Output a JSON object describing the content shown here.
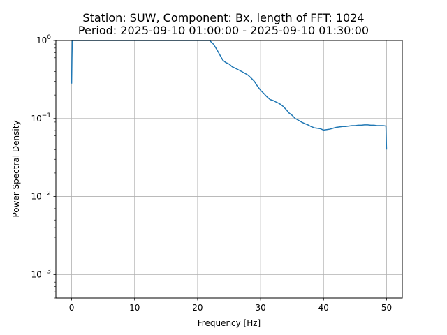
{
  "chart_data": {
    "type": "line",
    "title": "Station: SUW, Component: Bx, length of FFT: 1024",
    "subtitle": "Period: 2025-09-10 01:00:00 - 2025-09-10 01:30:00",
    "xlabel": "Frequency [Hz]",
    "ylabel": "Power Spectral Density",
    "xlim": [
      -2.5,
      52.5
    ],
    "ylim": [
      0.0005,
      1
    ],
    "yscale": "log",
    "grid": true,
    "x_ticks": [
      0,
      10,
      20,
      30,
      40,
      50
    ],
    "x_tick_labels": [
      "0",
      "10",
      "20",
      "30",
      "40",
      "50"
    ],
    "y_ticks": [
      0.001,
      0.01,
      0.1,
      1
    ],
    "y_tick_labels": [
      "10^-3",
      "10^-2",
      "10^-1",
      "10^0"
    ],
    "line_color": "#1f77b4",
    "series": [
      {
        "x": [
          0.0,
          0.05,
          0.1,
          21.9,
          22.5,
          23.0,
          23.5,
          24.0,
          24.5,
          25.0,
          25.5,
          26.0,
          26.5,
          27.0,
          27.5,
          28.0,
          28.5,
          29.0,
          29.5,
          30.0,
          30.5,
          31.0,
          31.5,
          32.0,
          32.5,
          33.0,
          33.5,
          34.0,
          34.5,
          35.0,
          35.5,
          36.0,
          36.5,
          37.0,
          37.5,
          38.0,
          38.5,
          39.0,
          39.5,
          40.0,
          40.5,
          41.0,
          41.5,
          42.0,
          42.5,
          43.0,
          43.5,
          44.0,
          44.5,
          45.0,
          45.5,
          46.0,
          46.5,
          47.0,
          47.5,
          48.0,
          48.5,
          49.0,
          49.5,
          49.9,
          50.0
        ],
        "y": [
          0.28,
          0.6,
          1.0,
          1.0,
          0.9,
          0.78,
          0.66,
          0.56,
          0.52,
          0.5,
          0.46,
          0.44,
          0.42,
          0.4,
          0.38,
          0.36,
          0.33,
          0.3,
          0.26,
          0.23,
          0.21,
          0.19,
          0.175,
          0.17,
          0.162,
          0.155,
          0.145,
          0.132,
          0.118,
          0.11,
          0.1,
          0.095,
          0.09,
          0.086,
          0.083,
          0.079,
          0.076,
          0.075,
          0.074,
          0.071,
          0.072,
          0.073,
          0.075,
          0.077,
          0.078,
          0.079,
          0.079,
          0.08,
          0.081,
          0.081,
          0.082,
          0.082,
          0.083,
          0.083,
          0.082,
          0.082,
          0.081,
          0.081,
          0.081,
          0.08,
          0.04
        ]
      }
    ]
  }
}
